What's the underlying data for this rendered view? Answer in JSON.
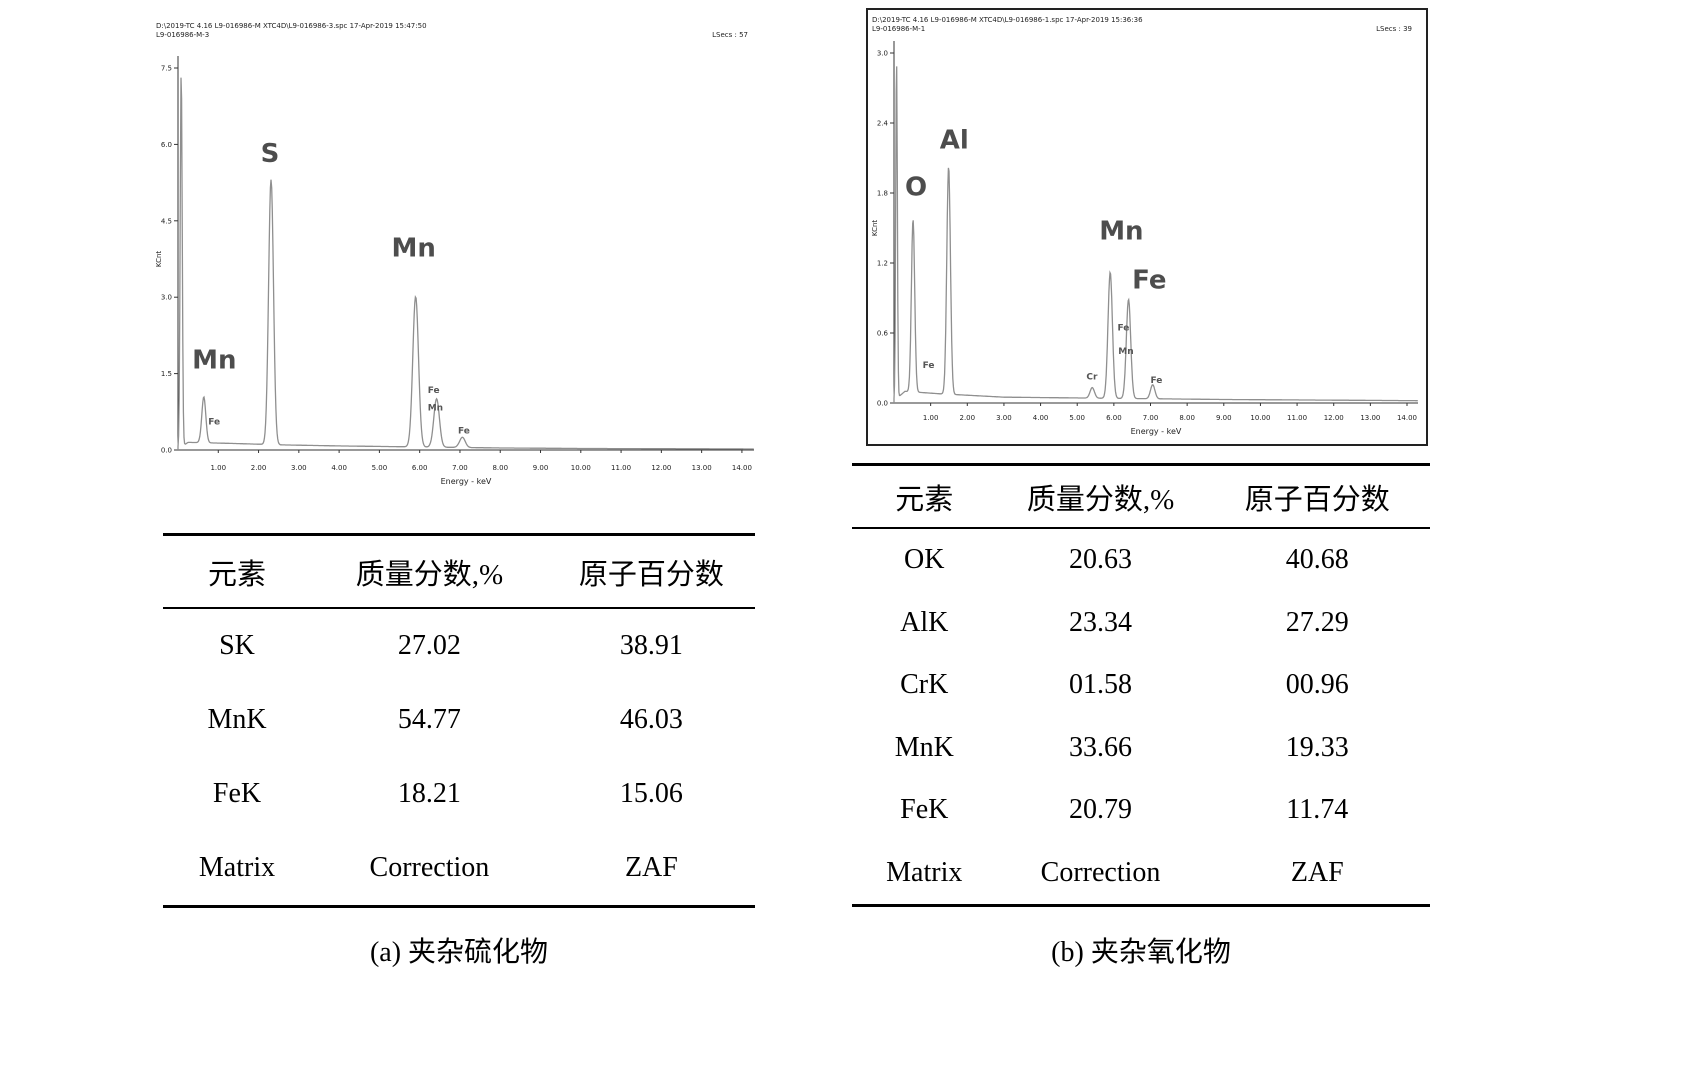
{
  "panels": [
    {
      "caption": "(a) 夹杂硫化物",
      "spectrum_header": {
        "line1": "D:\\2019-TC 4.16 L9-016986-M XTC4D\\L9-016986-3.spc  17-Apr-2019 15:47:50",
        "line2": "L9-016986-M-3",
        "lsecs": "LSecs : 57"
      },
      "table": {
        "headers": [
          "元素",
          "质量分数,%",
          "原子百分数"
        ],
        "rows": [
          [
            "SK",
            "27.02",
            "38.91"
          ],
          [
            "MnK",
            "54.77",
            "46.03"
          ],
          [
            "FeK",
            "18.21",
            "15.06"
          ],
          [
            "Matrix",
            "Correction",
            "ZAF"
          ]
        ]
      }
    },
    {
      "caption": "(b) 夹杂氧化物",
      "spectrum_header": {
        "line1": "D:\\2019-TC 4.16 L9-016986-M XTC4D\\L9-016986-1.spc  17-Apr-2019 15:36:36",
        "line2": "L9-016986-M-1",
        "lsecs": "LSecs : 39"
      },
      "table": {
        "headers": [
          "元素",
          "质量分数,%",
          "原子百分数"
        ],
        "rows": [
          [
            "OK",
            "20.63",
            "40.68"
          ],
          [
            "AlK",
            "23.34",
            "27.29"
          ],
          [
            "CrK",
            "01.58",
            "00.96"
          ],
          [
            "MnK",
            "33.66",
            "19.33"
          ],
          [
            "FeK",
            "20.79",
            "11.74"
          ],
          [
            "Matrix",
            "Correction",
            "ZAF"
          ]
        ]
      }
    }
  ],
  "chart_data": [
    {
      "type": "line",
      "title": "EDS spectrum of sulfide inclusion (a)",
      "xlabel": "Energy - keV",
      "ylabel": "KCnt",
      "xlim": [
        0,
        14.3
      ],
      "ylim": [
        0,
        7.5
      ],
      "yticks": [
        "7.5",
        "6.0",
        "4.5",
        "3.0",
        "1.5",
        "0.0"
      ],
      "xticks": [
        "1.00",
        "2.00",
        "3.00",
        "4.00",
        "5.00",
        "6.00",
        "7.00",
        "8.00",
        "9.00",
        "10.00",
        "11.00",
        "12.00",
        "13.00",
        "14.00"
      ],
      "peaks": [
        {
          "element": "zero-strobe",
          "x": 0.08,
          "height": 7.4,
          "sigma": 0.025
        },
        {
          "element": "Mn-L",
          "x": 0.64,
          "height": 0.9,
          "sigma": 0.05
        },
        {
          "element": "S-Ka",
          "x": 2.31,
          "height": 5.2,
          "sigma": 0.06
        },
        {
          "element": "Mn-Ka",
          "x": 5.9,
          "height": 2.95,
          "sigma": 0.07
        },
        {
          "element": "Fe-Ka/Mn-Kb",
          "x": 6.42,
          "height": 0.95,
          "sigma": 0.07
        },
        {
          "element": "Fe-Kb",
          "x": 7.06,
          "height": 0.2,
          "sigma": 0.07
        }
      ],
      "background": [
        [
          0,
          0.02
        ],
        [
          0.25,
          0.15
        ],
        [
          1.3,
          0.13
        ],
        [
          2.6,
          0.1
        ],
        [
          4.0,
          0.08
        ],
        [
          6.0,
          0.06
        ],
        [
          8.0,
          0.04
        ],
        [
          10.0,
          0.03
        ],
        [
          14.3,
          0.02
        ]
      ],
      "labels_large": [
        {
          "text": "Mn",
          "x": 0.35,
          "y": 1.6
        },
        {
          "text": "S",
          "x": 2.05,
          "y": 5.65
        },
        {
          "text": "Mn",
          "x": 5.3,
          "y": 3.8
        }
      ],
      "labels_small": [
        {
          "text": "Fe",
          "x": 0.75,
          "y": 0.5
        },
        {
          "text": "Fe",
          "x": 6.2,
          "y": 1.12
        },
        {
          "text": "Mn",
          "x": 6.2,
          "y": 0.78
        },
        {
          "text": "Fe",
          "x": 6.95,
          "y": 0.32
        }
      ]
    },
    {
      "type": "line",
      "title": "EDS spectrum of oxide inclusion (b)",
      "xlabel": "Energy - keV",
      "ylabel": "KCnt",
      "xlim": [
        0,
        14.3
      ],
      "ylim": [
        0,
        3.0
      ],
      "yticks": [
        "3.0",
        "2.4",
        "1.8",
        "1.2",
        "0.6",
        "0.0"
      ],
      "xticks": [
        "1.00",
        "2.00",
        "3.00",
        "4.00",
        "5.00",
        "6.00",
        "7.00",
        "8.00",
        "9.00",
        "10.00",
        "11.00",
        "12.00",
        "13.00",
        "14.00"
      ],
      "peaks": [
        {
          "element": "zero-strobe",
          "x": 0.07,
          "height": 2.92,
          "sigma": 0.022
        },
        {
          "element": "O-Ka",
          "x": 0.52,
          "height": 1.48,
          "sigma": 0.045
        },
        {
          "element": "Al-Ka",
          "x": 1.49,
          "height": 1.95,
          "sigma": 0.05
        },
        {
          "element": "Cr-Ka",
          "x": 5.41,
          "height": 0.09,
          "sigma": 0.06
        },
        {
          "element": "Mn-Ka",
          "x": 5.9,
          "height": 1.08,
          "sigma": 0.06
        },
        {
          "element": "Fe-Ka/Mn-Kb",
          "x": 6.4,
          "height": 0.85,
          "sigma": 0.06
        },
        {
          "element": "Fe-Kb",
          "x": 7.06,
          "height": 0.12,
          "sigma": 0.06
        }
      ],
      "background": [
        [
          0,
          0.02
        ],
        [
          0.3,
          0.1
        ],
        [
          1.2,
          0.08
        ],
        [
          3.0,
          0.05
        ],
        [
          6.0,
          0.04
        ],
        [
          9.0,
          0.03
        ],
        [
          14.3,
          0.02
        ]
      ],
      "labels_large": [
        {
          "text": "O",
          "x": 0.3,
          "y": 1.78
        },
        {
          "text": "Al",
          "x": 1.25,
          "y": 2.18
        },
        {
          "text": "Mn",
          "x": 5.6,
          "y": 1.4
        },
        {
          "text": "Fe",
          "x": 6.5,
          "y": 0.98
        }
      ],
      "labels_small": [
        {
          "text": "Fe",
          "x": 0.78,
          "y": 0.3
        },
        {
          "text": "Cr",
          "x": 5.25,
          "y": 0.2
        },
        {
          "text": "Fe",
          "x": 6.1,
          "y": 0.62
        },
        {
          "text": "Mn",
          "x": 6.12,
          "y": 0.42
        },
        {
          "text": "Fe",
          "x": 7.0,
          "y": 0.17
        }
      ]
    }
  ]
}
